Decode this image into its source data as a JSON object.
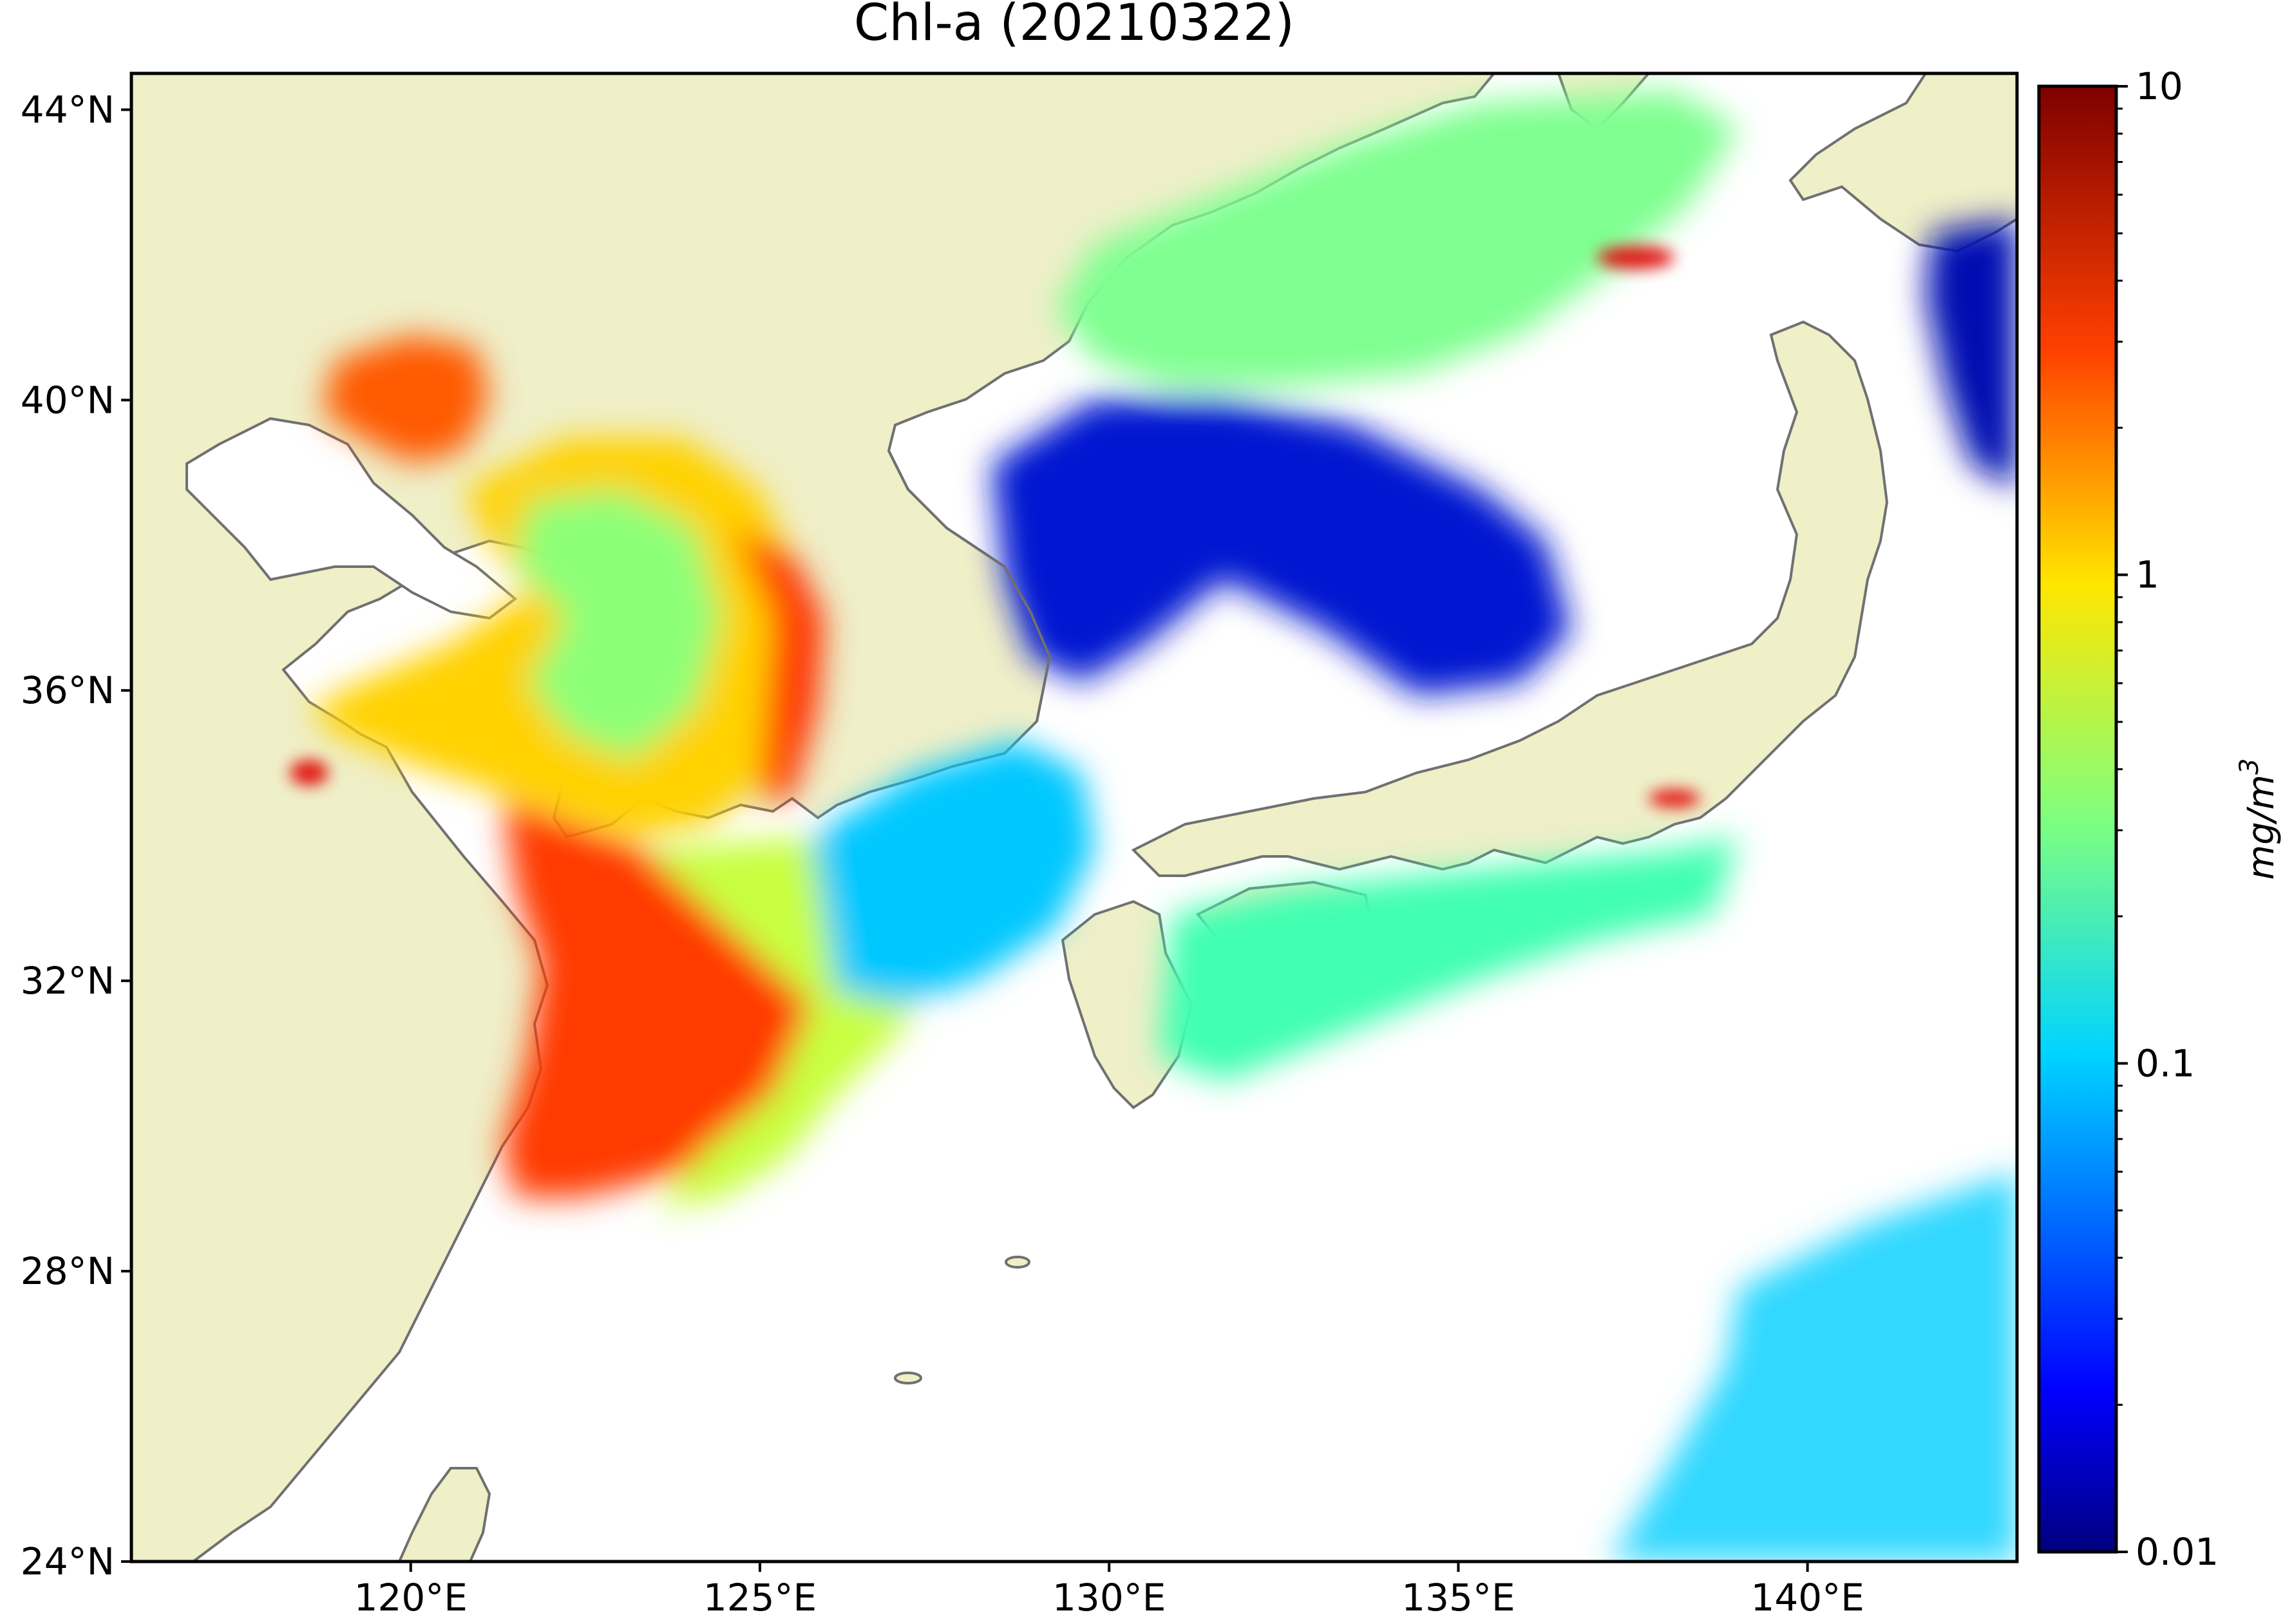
{
  "title": "Chl-a (20210322)",
  "map": {
    "projection": "PlateCarree",
    "lon_range": [
      116.0,
      143.0
    ],
    "lat_range": [
      24.0,
      44.5
    ],
    "lon_ticks": [
      {
        "value": 120,
        "label": "120°E"
      },
      {
        "value": 125,
        "label": "125°E"
      },
      {
        "value": 130,
        "label": "130°E"
      },
      {
        "value": 135,
        "label": "135°E"
      },
      {
        "value": 140,
        "label": "140°E"
      }
    ],
    "lat_ticks": [
      {
        "value": 24,
        "label": "24°N"
      },
      {
        "value": 28,
        "label": "28°N"
      },
      {
        "value": 32,
        "label": "32°N"
      },
      {
        "value": 36,
        "label": "36°N"
      },
      {
        "value": 40,
        "label": "40°N"
      },
      {
        "value": 44,
        "label": "44°N"
      }
    ],
    "colors": {
      "land": "#efefc8",
      "ocean_nodata": "#ffffff",
      "coastline": "#707070"
    }
  },
  "colorbar": {
    "label": "mg/m",
    "label_superscript": "3",
    "scale": "log",
    "range": [
      0.01,
      10
    ],
    "colormap": "jet",
    "ticks": [
      {
        "value": 10,
        "label": "10"
      },
      {
        "value": 1,
        "label": "1"
      },
      {
        "value": 0.1,
        "label": "0.1"
      },
      {
        "value": 0.01,
        "label": "0.01"
      }
    ],
    "colors": [
      "#00007f",
      "#0000ff",
      "#007fff",
      "#00ffff",
      "#7fff7f",
      "#ffff00",
      "#ff7f00",
      "#ff0000",
      "#7f0000"
    ]
  }
}
